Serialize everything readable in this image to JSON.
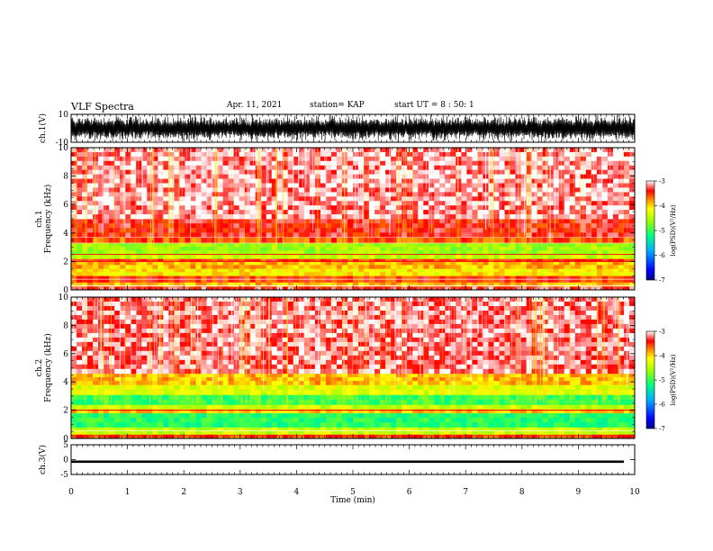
{
  "header": {
    "title": "VLF Spectra",
    "date": "Apr. 11, 2021",
    "station": "station= KAP",
    "start": "start  UT =  8 : 50: 1"
  },
  "chart_data": [
    {
      "type": "line",
      "title": "",
      "ylabel": "ch.1(V)",
      "ylim": [
        -10,
        10
      ],
      "yticks": [
        "10",
        "-10"
      ],
      "xlim": [
        0,
        10
      ],
      "description_values": {
        "amplitude_range": [
          -10,
          10
        ]
      }
    },
    {
      "type": "heatmap",
      "ylabel": "ch.1\nFrequency (kHz)",
      "ylim": [
        0,
        10
      ],
      "yticks": [
        "0",
        "2",
        "4",
        "6",
        "8",
        "10"
      ],
      "xlim": [
        0,
        10
      ],
      "bands": [
        {
          "from": 0,
          "to": 0.25,
          "level": -3.3
        },
        {
          "from": 0.25,
          "to": 0.55,
          "level": -3.9
        },
        {
          "from": 0.55,
          "to": 1.0,
          "level": -3.5
        },
        {
          "from": 1.0,
          "to": 1.5,
          "level": -4.1
        },
        {
          "from": 1.5,
          "to": 2.0,
          "level": -3.9
        },
        {
          "from": 2.0,
          "to": 2.2,
          "level": -3.5
        },
        {
          "from": 2.2,
          "to": 2.5,
          "level": -4.4
        },
        {
          "from": 2.5,
          "to": 3.3,
          "level": -4.6
        },
        {
          "from": 3.3,
          "to": 3.7,
          "level": -3.6
        },
        {
          "from": 3.7,
          "to": 5.0,
          "level": -3.4
        },
        {
          "from": 5.0,
          "to": 10.0,
          "level": -3.15
        }
      ],
      "colorbar": {
        "label": "log(PSD)(V²/Hz)",
        "ticks": [
          "-3",
          "-4",
          "-5",
          "-6",
          "-7"
        ],
        "range": [
          -7,
          -3
        ]
      }
    },
    {
      "type": "heatmap",
      "ylabel": "ch.2\nFrequency (kHz)",
      "ylim": [
        0,
        10
      ],
      "yticks": [
        "0",
        "2",
        "4",
        "6",
        "8",
        "10"
      ],
      "xlim": [
        0,
        10
      ],
      "bands": [
        {
          "from": 0,
          "to": 0.3,
          "level": -3.6
        },
        {
          "from": 0.3,
          "to": 0.8,
          "level": -4.4
        },
        {
          "from": 0.8,
          "to": 1.8,
          "level": -5.1
        },
        {
          "from": 1.8,
          "to": 2.1,
          "level": -4.0
        },
        {
          "from": 2.1,
          "to": 2.4,
          "level": -4.4
        },
        {
          "from": 2.4,
          "to": 3.1,
          "level": -5.0
        },
        {
          "from": 3.1,
          "to": 3.8,
          "level": -4.3
        },
        {
          "from": 3.8,
          "to": 4.6,
          "level": -3.9
        },
        {
          "from": 4.6,
          "to": 10.0,
          "level": -3.2
        }
      ],
      "colorbar": {
        "label": "log(PSD)(V²/Hz)",
        "ticks": [
          "-3",
          "-4",
          "-5",
          "-6",
          "-7"
        ],
        "range": [
          -7,
          -3
        ]
      }
    },
    {
      "type": "line",
      "ylabel": "ch.3(V)",
      "ylim": [
        -5,
        5
      ],
      "yticks": [
        "5",
        "0",
        "-5"
      ],
      "xlim": [
        0,
        10
      ],
      "xlabel": "Time (min)",
      "xticks": [
        "0",
        "1",
        "2",
        "3",
        "4",
        "5",
        "6",
        "7",
        "8",
        "9",
        "10"
      ],
      "description_values": {
        "band_range": [
          -1.1,
          -0.3
        ]
      }
    }
  ]
}
